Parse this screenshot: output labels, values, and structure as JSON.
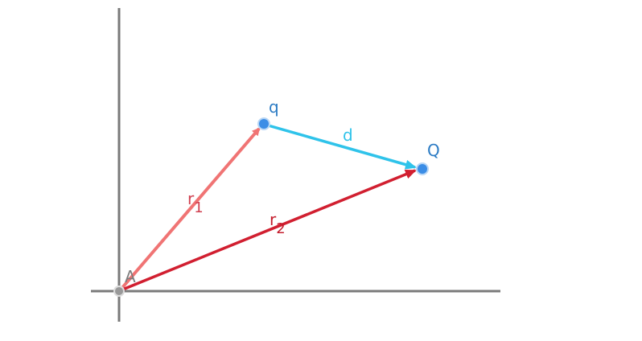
{
  "nodes": [
    {
      "label": "A"
    },
    {
      "label": "q"
    },
    {
      "label": "Q"
    }
  ],
  "edges": [
    {
      "label": "d"
    },
    {
      "label": {
        "main": "r",
        "sub": "1"
      }
    },
    {
      "label": {
        "main": "r",
        "sub": "2"
      }
    }
  ]
}
